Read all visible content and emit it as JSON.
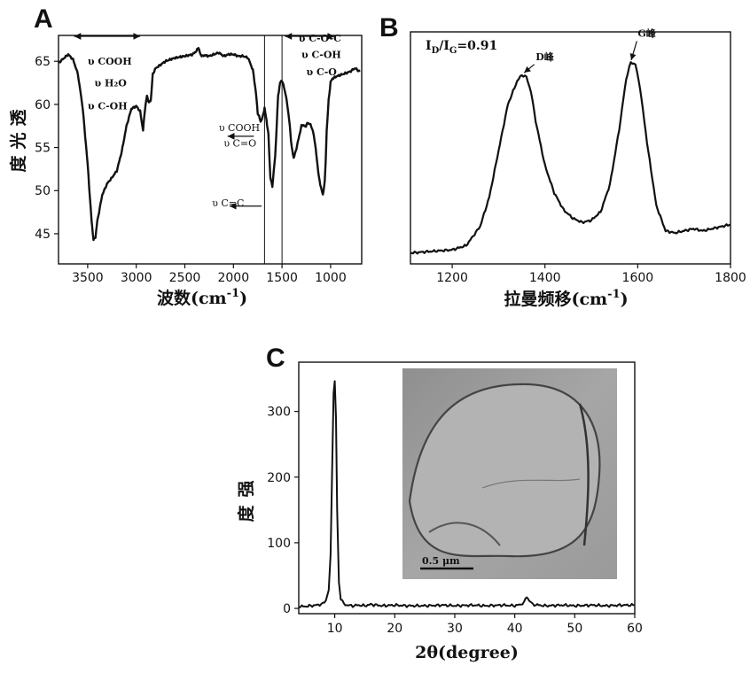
{
  "chart_data": [
    {
      "panel": "A",
      "type": "line",
      "xlabel": "波数(cm",
      "xlabel_sup": "-1",
      "xlabel_tail": ")",
      "ylabel": "透光度",
      "xlim": [
        3800,
        680
      ],
      "ylim": [
        41.5,
        68
      ],
      "xticks": [
        3500,
        3000,
        2500,
        2000,
        1500,
        1000
      ],
      "yticks": [
        45,
        50,
        55,
        60,
        65
      ],
      "x": [
        3800,
        3750,
        3700,
        3650,
        3600,
        3550,
        3500,
        3460,
        3440,
        3420,
        3400,
        3350,
        3300,
        3250,
        3200,
        3150,
        3100,
        3050,
        3000,
        2960,
        2930,
        2910,
        2890,
        2870,
        2850,
        2830,
        2800,
        2750,
        2700,
        2600,
        2500,
        2420,
        2380,
        2360,
        2340,
        2320,
        2300,
        2250,
        2200,
        2150,
        2100,
        2050,
        2000,
        1950,
        1900,
        1850,
        1800,
        1770,
        1750,
        1730,
        1720,
        1700,
        1680,
        1660,
        1640,
        1620,
        1600,
        1570,
        1540,
        1520,
        1500,
        1480,
        1460,
        1440,
        1420,
        1400,
        1380,
        1360,
        1330,
        1300,
        1280,
        1260,
        1240,
        1220,
        1200,
        1180,
        1160,
        1140,
        1120,
        1100,
        1080,
        1060,
        1050,
        1040,
        1020,
        1000,
        980,
        950,
        900,
        850,
        800,
        750,
        700
      ],
      "y": [
        64.8,
        65.3,
        65.8,
        65.2,
        63.5,
        59.5,
        53,
        46.5,
        44.3,
        44.6,
        46.5,
        49.5,
        50.8,
        51.5,
        52.3,
        54.5,
        57.5,
        59.5,
        59.8,
        59.2,
        57,
        59.5,
        61,
        60.2,
        60.5,
        63.5,
        64.2,
        64.6,
        65,
        65.4,
        65.6,
        65.8,
        66.2,
        66.6,
        65.8,
        65.6,
        65.7,
        65.6,
        65.8,
        66,
        65.6,
        65.8,
        65.8,
        65.6,
        65.6,
        65.4,
        64,
        61.5,
        59,
        58.4,
        58,
        58.5,
        59.6,
        58.2,
        56.5,
        51.5,
        50.5,
        54,
        61,
        62.5,
        62.8,
        62,
        61,
        59.5,
        57.5,
        55,
        53.8,
        54.5,
        56,
        57.5,
        57.6,
        57.4,
        57.8,
        57.8,
        57.5,
        56.8,
        55.5,
        53.5,
        51.5,
        50.4,
        49.5,
        51,
        53.5,
        57,
        60.5,
        62.6,
        63,
        63.2,
        63.4,
        63.6,
        63.8,
        64.2,
        63.8
      ],
      "vlines": [
        1680,
        1500
      ],
      "annotations": [
        {
          "text": "υ COOH",
          "x": 3500,
          "y": 64.6,
          "bold": true
        },
        {
          "text": "υ H₂O",
          "x": 3430,
          "y": 62.1,
          "bold": true
        },
        {
          "text": "υ C-OH",
          "x": 3500,
          "y": 59.4,
          "bold": true
        },
        {
          "text": "υ COOH",
          "x": 2150,
          "y": 56.9,
          "bold": false
        },
        {
          "text": "υ C=O",
          "x": 2100,
          "y": 55.1,
          "bold": false
        },
        {
          "text": "υ C=C",
          "x": 2220,
          "y": 48.2,
          "bold": false
        },
        {
          "text": "υ C-O-C",
          "x": 1330,
          "y": 67.3,
          "bold": true
        },
        {
          "text": "υ C-OH",
          "x": 1300,
          "y": 65.4,
          "bold": true
        },
        {
          "text": "υ C-O",
          "x": 1250,
          "y": 63.4,
          "bold": true
        }
      ],
      "arrows": [
        {
          "from": [
            3640,
            67.9
          ],
          "to": [
            2960,
            67.9
          ],
          "double": true
        },
        {
          "from": [
            1470,
            67.9
          ],
          "to": [
            960,
            67.9
          ],
          "double": true
        },
        {
          "from": [
            1790,
            56.3
          ],
          "to": [
            2060,
            56.3
          ],
          "double": false
        },
        {
          "from": [
            1710,
            48.2
          ],
          "to": [
            2040,
            48.2
          ],
          "double": false
        }
      ]
    },
    {
      "panel": "B",
      "type": "line",
      "xlabel": "拉曼频移(cm",
      "xlabel_sup": "-1",
      "xlabel_tail": ")",
      "xlim": [
        1110,
        1800
      ],
      "ylim": [
        0,
        1
      ],
      "xticks": [
        1200,
        1400,
        1600,
        1800
      ],
      "x": [
        1110,
        1140,
        1170,
        1200,
        1230,
        1260,
        1280,
        1300,
        1320,
        1340,
        1350,
        1360,
        1370,
        1380,
        1400,
        1420,
        1440,
        1460,
        1480,
        1500,
        1520,
        1540,
        1560,
        1575,
        1585,
        1595,
        1605,
        1620,
        1640,
        1660,
        1680,
        1700,
        1720,
        1740,
        1760,
        1780,
        1800
      ],
      "y": [
        0.035,
        0.04,
        0.045,
        0.05,
        0.07,
        0.16,
        0.3,
        0.52,
        0.74,
        0.85,
        0.88,
        0.87,
        0.8,
        0.66,
        0.45,
        0.32,
        0.24,
        0.2,
        0.18,
        0.19,
        0.23,
        0.36,
        0.62,
        0.86,
        0.94,
        0.93,
        0.82,
        0.56,
        0.26,
        0.14,
        0.13,
        0.14,
        0.15,
        0.14,
        0.15,
        0.16,
        0.17
      ],
      "inset_label": "I",
      "inset_sub1": "D",
      "inset_mid": "/I",
      "inset_sub2": "G",
      "inset_value": "=0.91",
      "annotations": [
        {
          "text": "D峰",
          "x": 1380,
          "y": 0.95
        },
        {
          "text": "G峰",
          "x": 1600,
          "y": 1.06
        }
      ],
      "pointers": [
        {
          "from": [
            1377,
            0.93
          ],
          "to": [
            1355,
            0.89
          ]
        },
        {
          "from": [
            1598,
            1.04
          ],
          "to": [
            1586,
            0.95
          ]
        }
      ]
    },
    {
      "panel": "C",
      "type": "line",
      "xlabel": "2θ(degree)",
      "ylabel": "强度",
      "xlim": [
        4,
        60
      ],
      "ylim": [
        -8,
        375
      ],
      "xticks": [
        10,
        20,
        30,
        40,
        50,
        60
      ],
      "yticks": [
        0,
        100,
        200,
        300
      ],
      "x": [
        4,
        5,
        6,
        7,
        8,
        8.5,
        9,
        9.3,
        9.6,
        9.8,
        10,
        10.2,
        10.4,
        10.7,
        11,
        11.5,
        12,
        13,
        14,
        15,
        16,
        17,
        18,
        20,
        22,
        25,
        28,
        30,
        33,
        35,
        38,
        40,
        41,
        41.6,
        42,
        42.4,
        43,
        45,
        48,
        50,
        53,
        55,
        58,
        60
      ],
      "y": [
        3,
        3,
        4,
        5,
        7,
        12,
        28,
        80,
        230,
        330,
        345,
        290,
        150,
        40,
        15,
        7,
        5,
        4,
        5,
        4,
        6,
        5,
        4,
        5,
        4,
        4,
        5,
        4,
        5,
        4,
        5,
        4,
        6,
        10,
        18,
        12,
        6,
        4,
        5,
        4,
        5,
        4,
        5,
        5
      ],
      "inset_image_label": "0.5 μm"
    }
  ]
}
